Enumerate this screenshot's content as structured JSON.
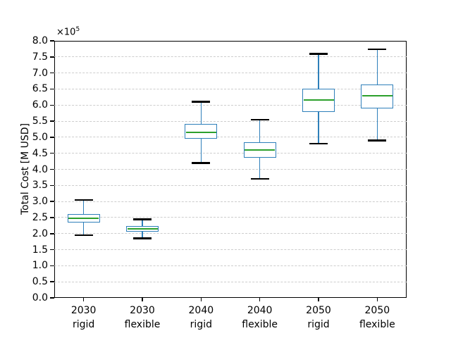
{
  "chart_data": {
    "type": "boxplot",
    "title": "",
    "xlabel": "",
    "ylabel": "Total Cost [M USD]",
    "y_offset_text": {
      "base": "×10",
      "exp": "5"
    },
    "value_unit_multiplier": "1e5",
    "ylim": [
      0.0,
      8.0
    ],
    "y_tick_labels": [
      "0.0",
      "0.5",
      "1.0",
      "1.5",
      "2.0",
      "2.5",
      "3.0",
      "3.5",
      "4.0",
      "4.5",
      "5.0",
      "5.5",
      "6.0",
      "6.5",
      "7.0",
      "7.5",
      "8.0"
    ],
    "y_tick_values": [
      0.0,
      0.5,
      1.0,
      1.5,
      2.0,
      2.5,
      3.0,
      3.5,
      4.0,
      4.5,
      5.0,
      5.5,
      6.0,
      6.5,
      7.0,
      7.5,
      8.0
    ],
    "grid": "horizontal dashed",
    "legend": "none",
    "categories": [
      {
        "year": "2030",
        "mode": "rigid"
      },
      {
        "year": "2030",
        "mode": "flexible"
      },
      {
        "year": "2040",
        "mode": "rigid"
      },
      {
        "year": "2040",
        "mode": "flexible"
      },
      {
        "year": "2050",
        "mode": "rigid"
      },
      {
        "year": "2050",
        "mode": "flexible"
      }
    ],
    "series": [
      {
        "label": "2030 rigid",
        "whisker_low": 1.95,
        "q1": 2.35,
        "median": 2.47,
        "q3": 2.6,
        "whisker_high": 3.05
      },
      {
        "label": "2030 flexible",
        "whisker_low": 1.85,
        "q1": 2.05,
        "median": 2.14,
        "q3": 2.24,
        "whisker_high": 2.44
      },
      {
        "label": "2040 rigid",
        "whisker_low": 4.2,
        "q1": 4.95,
        "median": 5.16,
        "q3": 5.42,
        "whisker_high": 6.1
      },
      {
        "label": "2040 flexible",
        "whisker_low": 3.7,
        "q1": 4.36,
        "median": 4.6,
        "q3": 4.84,
        "whisker_high": 5.54
      },
      {
        "label": "2050 rigid",
        "whisker_low": 4.8,
        "q1": 5.79,
        "median": 6.16,
        "q3": 6.5,
        "whisker_high": 7.6
      },
      {
        "label": "2050 flexible",
        "whisker_low": 4.9,
        "q1": 5.89,
        "median": 6.28,
        "q3": 6.64,
        "whisker_high": 7.74
      }
    ],
    "colors": {
      "box_edge": "#2e7fba",
      "box_fill": "#ffffff",
      "whisker": "#2e7fba",
      "cap": "#000000",
      "median": "#2ca02c",
      "grid": "#cdcdcd",
      "spine": "#000000",
      "text": "#000000",
      "background": "#ffffff"
    }
  }
}
